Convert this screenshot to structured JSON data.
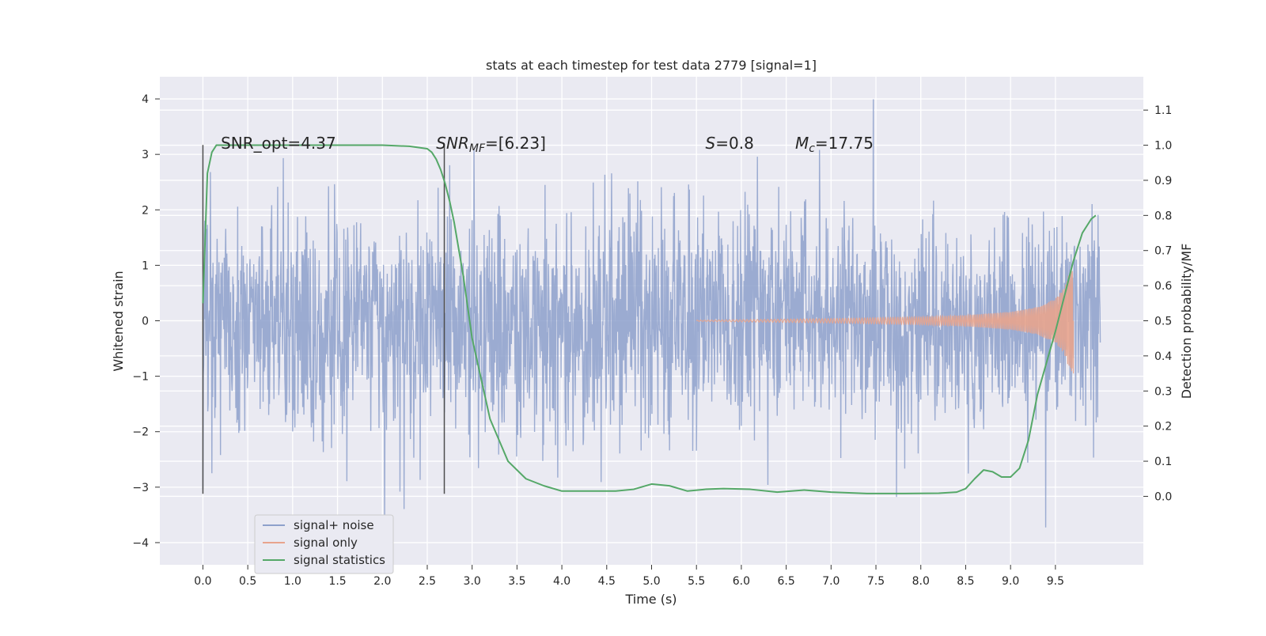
{
  "chart_data": {
    "type": "line",
    "title": "stats at each timestep for test data 2779 [signal=1]",
    "xlabel": "Time (s)",
    "ylabel_left": "Whitened strain",
    "ylabel_right": "Detection probability/MF",
    "x_ticks": [
      "0.0",
      "0.5",
      "1.0",
      "1.5",
      "2.0",
      "2.5",
      "3.0",
      "3.5",
      "4.0",
      "4.5",
      "5.0",
      "5.5",
      "6.0",
      "6.5",
      "7.0",
      "7.5",
      "8.0",
      "8.5",
      "9.0",
      "9.5"
    ],
    "y_left_ticks": [
      "4",
      "3",
      "2",
      "1",
      "0",
      "−1",
      "−2",
      "−3",
      "−4"
    ],
    "y_right_ticks": [
      "1.1",
      "1.0",
      "0.9",
      "0.8",
      "0.7",
      "0.6",
      "0.5",
      "0.4",
      "0.3",
      "0.2",
      "0.1",
      "0.0"
    ],
    "xlim": [
      -0.48,
      10.48
    ],
    "ylim_left": [
      -4.4,
      4.4
    ],
    "ylim_right": [
      -0.195,
      1.195
    ],
    "grid": true,
    "legend": {
      "placement": "lower-left",
      "entries": [
        "signal+ noise",
        "signal only",
        "signal statistics"
      ]
    },
    "series": [
      {
        "name": "signal+ noise",
        "axis": "left",
        "color": "#8da0cb",
        "description_range": [
          -4.0,
          4.05
        ],
        "x_range": [
          0.0,
          10.0
        ]
      },
      {
        "name": "signal only",
        "axis": "left",
        "color": "#e8a48d",
        "envelope": {
          "x": [
            5.5,
            6.0,
            7.0,
            8.0,
            8.5,
            9.0,
            9.3,
            9.5,
            9.6,
            9.65,
            9.7
          ],
          "amplitude": [
            0.01,
            0.02,
            0.04,
            0.07,
            0.1,
            0.16,
            0.25,
            0.4,
            0.6,
            0.85,
            0.95
          ]
        }
      },
      {
        "name": "signal statistics",
        "axis": "right",
        "color": "#55a868",
        "x": [
          0.0,
          0.05,
          0.1,
          0.15,
          0.2,
          0.3,
          0.5,
          1.0,
          1.5,
          2.0,
          2.3,
          2.5,
          2.55,
          2.6,
          2.65,
          2.7,
          2.75,
          2.8,
          2.9,
          3.0,
          3.2,
          3.4,
          3.6,
          3.8,
          4.0,
          4.3,
          4.6,
          4.8,
          5.0,
          5.2,
          5.4,
          5.6,
          5.8,
          6.1,
          6.4,
          6.7,
          7.0,
          7.4,
          7.8,
          8.2,
          8.4,
          8.5,
          8.6,
          8.7,
          8.8,
          8.9,
          9.0,
          9.1,
          9.2,
          9.3,
          9.4,
          9.5,
          9.6,
          9.7,
          9.8,
          9.9,
          9.95
        ],
        "y": [
          0.55,
          0.92,
          0.98,
          1.0,
          1.0,
          1.0,
          1.0,
          1.0,
          1.0,
          1.0,
          0.997,
          0.99,
          0.98,
          0.96,
          0.93,
          0.89,
          0.84,
          0.78,
          0.63,
          0.45,
          0.22,
          0.1,
          0.05,
          0.03,
          0.015,
          0.015,
          0.015,
          0.02,
          0.035,
          0.03,
          0.015,
          0.02,
          0.022,
          0.02,
          0.012,
          0.018,
          0.012,
          0.008,
          0.008,
          0.009,
          0.012,
          0.022,
          0.05,
          0.075,
          0.07,
          0.055,
          0.055,
          0.08,
          0.16,
          0.29,
          0.38,
          0.47,
          0.57,
          0.67,
          0.75,
          0.79,
          0.8
        ]
      }
    ],
    "vlines": [
      {
        "x": 0.0,
        "y_range": [
          -3.12,
          3.17
        ]
      },
      {
        "x": 2.69,
        "y_range": [
          -3.12,
          3.17
        ]
      }
    ],
    "annotations": [
      {
        "text": "SNR_opt=4.37",
        "x": 0.2,
        "y": 3.2
      },
      {
        "text_main": "SNR",
        "text_sub": "MF",
        "text_rest": "=[6.23]",
        "x": 2.6,
        "y": 3.2
      },
      {
        "text_main": "S",
        "text_rest": "=0.8",
        "x": 5.6,
        "y": 3.2
      },
      {
        "text_main": "M",
        "text_sub": "c",
        "text_rest": "=17.75",
        "x": 6.6,
        "y": 3.2
      }
    ],
    "colors": {
      "axes_background": "#eaeaf2",
      "grid": "#ffffff",
      "vline": "#4d4d4d"
    }
  }
}
